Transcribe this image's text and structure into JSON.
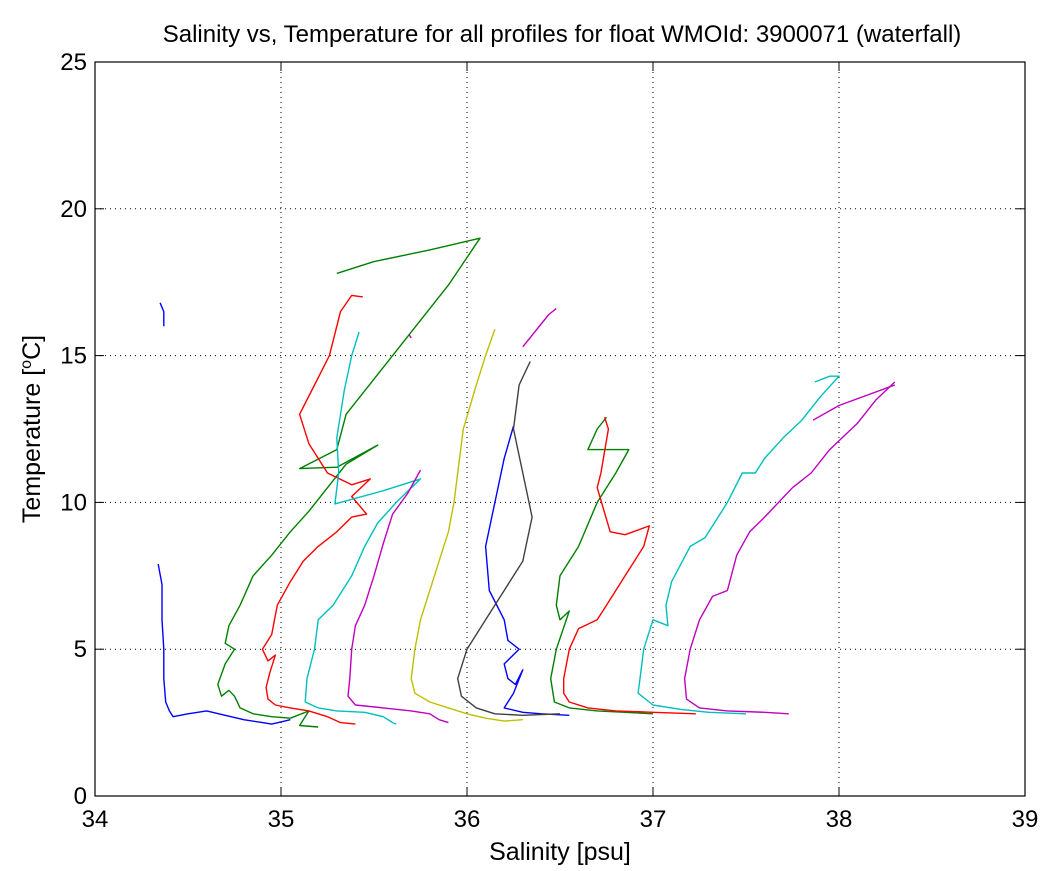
{
  "chart_data": {
    "type": "line",
    "title": "Salinity vs, Temperature for all profiles for float WMOId: 3900071 (waterfall)",
    "xlabel": "Salinity [psu]",
    "ylabel_prefix": "Temperature [",
    "ylabel_sup": "o",
    "ylabel_suffix": "C]",
    "xlim": [
      34,
      39
    ],
    "ylim": [
      0,
      25
    ],
    "xticks": [
      34,
      35,
      36,
      37,
      38,
      39
    ],
    "yticks": [
      0,
      5,
      10,
      15,
      20,
      25
    ],
    "grid": true,
    "series": [
      {
        "color": "#0000ff",
        "points": [
          [
            34.35,
            16.8
          ],
          [
            34.37,
            16.5
          ],
          [
            34.37,
            16.0
          ]
        ]
      },
      {
        "color": "#0000ff",
        "points": [
          [
            34.34,
            7.9
          ],
          [
            34.36,
            7.2
          ],
          [
            34.36,
            6.0
          ],
          [
            34.37,
            5.0
          ],
          [
            34.37,
            4.0
          ],
          [
            34.38,
            3.2
          ],
          [
            34.4,
            2.9
          ],
          [
            34.42,
            2.7
          ],
          [
            34.5,
            2.8
          ],
          [
            34.6,
            2.9
          ],
          [
            34.7,
            2.75
          ],
          [
            34.8,
            2.6
          ],
          [
            34.9,
            2.5
          ],
          [
            34.95,
            2.45
          ],
          [
            35.02,
            2.55
          ],
          [
            35.05,
            2.6
          ]
        ]
      },
      {
        "color": "#008000",
        "points": [
          [
            35.3,
            17.8
          ],
          [
            35.5,
            18.2
          ],
          [
            35.8,
            18.6
          ],
          [
            36.07,
            19.0
          ],
          [
            35.9,
            17.4
          ],
          [
            35.7,
            15.8
          ],
          [
            35.5,
            14.2
          ],
          [
            35.35,
            13.0
          ],
          [
            35.3,
            11.8
          ],
          [
            35.1,
            11.15
          ],
          [
            35.3,
            11.2
          ],
          [
            35.52,
            11.95
          ],
          [
            35.35,
            11.3
          ],
          [
            35.25,
            10.5
          ],
          [
            35.15,
            9.7
          ],
          [
            35.05,
            9.0
          ],
          [
            34.95,
            8.2
          ],
          [
            34.85,
            7.5
          ],
          [
            34.78,
            6.5
          ],
          [
            34.72,
            5.8
          ],
          [
            34.7,
            5.2
          ],
          [
            34.75,
            5.0
          ],
          [
            34.7,
            4.5
          ],
          [
            34.66,
            3.8
          ],
          [
            34.68,
            3.4
          ],
          [
            34.72,
            3.6
          ],
          [
            34.75,
            3.4
          ],
          [
            34.78,
            3.0
          ],
          [
            34.85,
            2.8
          ],
          [
            34.95,
            2.7
          ],
          [
            35.05,
            2.65
          ],
          [
            35.15,
            2.9
          ],
          [
            35.1,
            2.4
          ],
          [
            35.2,
            2.35
          ]
        ]
      },
      {
        "color": "#ff0000",
        "points": [
          [
            35.44,
            17.0
          ],
          [
            35.38,
            17.05
          ],
          [
            35.32,
            16.5
          ],
          [
            35.26,
            15.0
          ],
          [
            35.18,
            14.0
          ],
          [
            35.1,
            13.0
          ],
          [
            35.15,
            12.0
          ],
          [
            35.25,
            11.0
          ],
          [
            35.38,
            10.6
          ],
          [
            35.48,
            10.8
          ],
          [
            35.38,
            10.2
          ],
          [
            35.46,
            9.6
          ],
          [
            35.38,
            9.5
          ],
          [
            35.3,
            9.0
          ],
          [
            35.2,
            8.5
          ],
          [
            35.12,
            8.0
          ],
          [
            35.05,
            7.3
          ],
          [
            34.98,
            6.5
          ],
          [
            34.95,
            5.5
          ],
          [
            34.9,
            5.0
          ],
          [
            34.93,
            4.6
          ],
          [
            34.97,
            4.8
          ],
          [
            34.94,
            4.2
          ],
          [
            34.92,
            3.7
          ],
          [
            34.93,
            3.3
          ],
          [
            34.97,
            3.1
          ],
          [
            35.05,
            3.0
          ],
          [
            35.15,
            2.9
          ],
          [
            35.25,
            2.7
          ],
          [
            35.32,
            2.5
          ],
          [
            35.4,
            2.45
          ]
        ]
      },
      {
        "color": "#00bfbf",
        "points": [
          [
            35.42,
            15.8
          ],
          [
            35.38,
            15.0
          ],
          [
            35.34,
            13.8
          ],
          [
            35.3,
            12.2
          ],
          [
            35.31,
            11.0
          ],
          [
            35.29,
            9.95
          ],
          [
            35.55,
            10.4
          ],
          [
            35.75,
            10.8
          ],
          [
            35.62,
            10.0
          ],
          [
            35.52,
            9.3
          ],
          [
            35.45,
            8.5
          ],
          [
            35.38,
            7.5
          ],
          [
            35.33,
            7.0
          ],
          [
            35.28,
            6.5
          ],
          [
            35.2,
            6.0
          ],
          [
            35.18,
            5.0
          ],
          [
            35.14,
            4.0
          ],
          [
            35.13,
            3.2
          ],
          [
            35.2,
            3.0
          ],
          [
            35.3,
            2.9
          ],
          [
            35.45,
            2.85
          ],
          [
            35.55,
            2.7
          ],
          [
            35.6,
            2.5
          ],
          [
            35.62,
            2.45
          ]
        ]
      },
      {
        "color": "#bf00bf",
        "points": [
          [
            35.69,
            15.7
          ],
          [
            35.7,
            15.6
          ]
        ]
      },
      {
        "color": "#bf00bf",
        "points": [
          [
            35.75,
            11.1
          ],
          [
            35.68,
            10.3
          ],
          [
            35.6,
            9.6
          ],
          [
            35.55,
            8.6
          ],
          [
            35.5,
            7.5
          ],
          [
            35.45,
            6.5
          ],
          [
            35.4,
            5.8
          ],
          [
            35.38,
            5.0
          ],
          [
            35.37,
            4.0
          ],
          [
            35.36,
            3.4
          ],
          [
            35.4,
            3.1
          ],
          [
            35.55,
            3.0
          ],
          [
            35.7,
            2.9
          ],
          [
            35.8,
            2.8
          ],
          [
            35.85,
            2.6
          ],
          [
            35.9,
            2.5
          ]
        ]
      },
      {
        "color": "#bfbf00",
        "points": [
          [
            36.15,
            15.9
          ],
          [
            36.1,
            15.0
          ],
          [
            36.05,
            14.0
          ],
          [
            35.98,
            12.5
          ],
          [
            35.95,
            11.0
          ],
          [
            35.93,
            10.0
          ],
          [
            35.9,
            9.0
          ],
          [
            35.85,
            8.0
          ],
          [
            35.8,
            7.0
          ],
          [
            35.75,
            6.0
          ],
          [
            35.72,
            5.0
          ],
          [
            35.7,
            4.0
          ],
          [
            35.72,
            3.5
          ],
          [
            35.8,
            3.2
          ],
          [
            35.9,
            3.0
          ],
          [
            36.0,
            2.8
          ],
          [
            36.1,
            2.65
          ],
          [
            36.2,
            2.55
          ],
          [
            36.3,
            2.6
          ]
        ]
      },
      {
        "color": "#0000ff",
        "points": [
          [
            36.25,
            12.6
          ],
          [
            36.2,
            11.5
          ],
          [
            36.15,
            10.0
          ],
          [
            36.1,
            8.5
          ],
          [
            36.12,
            7.0
          ],
          [
            36.2,
            6.0
          ],
          [
            36.22,
            5.3
          ],
          [
            36.28,
            5.0
          ],
          [
            36.2,
            4.5
          ],
          [
            36.22,
            4.0
          ],
          [
            36.26,
            3.8
          ],
          [
            36.3,
            4.3
          ],
          [
            36.25,
            3.5
          ],
          [
            36.2,
            3.0
          ],
          [
            36.3,
            2.85
          ],
          [
            36.4,
            2.8
          ],
          [
            36.55,
            2.75
          ]
        ]
      },
      {
        "color": "#404040",
        "points": [
          [
            36.34,
            14.8
          ],
          [
            36.28,
            14.0
          ],
          [
            36.25,
            12.5
          ],
          [
            36.3,
            11.0
          ],
          [
            36.35,
            9.5
          ],
          [
            36.3,
            8.0
          ],
          [
            36.2,
            7.0
          ],
          [
            36.1,
            6.0
          ],
          [
            36.0,
            5.0
          ],
          [
            35.95,
            4.0
          ],
          [
            35.97,
            3.4
          ],
          [
            36.05,
            3.0
          ],
          [
            36.15,
            2.8
          ],
          [
            36.3,
            2.75
          ],
          [
            36.5,
            2.8
          ]
        ]
      },
      {
        "color": "#bf00bf",
        "points": [
          [
            36.48,
            16.6
          ],
          [
            36.44,
            16.4
          ],
          [
            36.3,
            15.3
          ]
        ]
      },
      {
        "color": "#008000",
        "points": [
          [
            36.75,
            12.9
          ],
          [
            36.7,
            12.5
          ],
          [
            36.65,
            11.8
          ],
          [
            36.75,
            11.8
          ],
          [
            36.87,
            11.8
          ],
          [
            36.8,
            11.0
          ],
          [
            36.7,
            10.0
          ],
          [
            36.6,
            8.5
          ],
          [
            36.5,
            7.5
          ],
          [
            36.48,
            6.5
          ],
          [
            36.5,
            6.0
          ],
          [
            36.55,
            6.3
          ],
          [
            36.48,
            5.0
          ],
          [
            36.45,
            4.0
          ],
          [
            36.47,
            3.2
          ],
          [
            36.55,
            3.0
          ],
          [
            36.7,
            2.9
          ],
          [
            36.85,
            2.85
          ],
          [
            37.0,
            2.8
          ]
        ]
      },
      {
        "color": "#ff0000",
        "points": [
          [
            36.74,
            12.9
          ],
          [
            36.76,
            12.5
          ],
          [
            36.72,
            11.0
          ],
          [
            36.7,
            10.5
          ],
          [
            36.77,
            9.0
          ],
          [
            36.85,
            8.9
          ],
          [
            36.98,
            9.2
          ],
          [
            36.95,
            8.5
          ],
          [
            36.9,
            8.0
          ],
          [
            36.85,
            7.5
          ],
          [
            36.8,
            7.0
          ],
          [
            36.75,
            6.5
          ],
          [
            36.7,
            6.0
          ],
          [
            36.6,
            5.7
          ],
          [
            36.55,
            5.0
          ],
          [
            36.52,
            4.0
          ],
          [
            36.52,
            3.5
          ],
          [
            36.55,
            3.2
          ],
          [
            36.65,
            3.0
          ],
          [
            36.8,
            2.9
          ],
          [
            37.0,
            2.85
          ],
          [
            37.23,
            2.8
          ]
        ]
      },
      {
        "color": "#00bfbf",
        "points": [
          [
            37.87,
            14.1
          ],
          [
            37.95,
            14.3
          ],
          [
            38.0,
            14.3
          ],
          [
            37.9,
            13.6
          ],
          [
            37.8,
            12.8
          ],
          [
            37.7,
            12.2
          ],
          [
            37.6,
            11.5
          ],
          [
            37.55,
            11.0
          ],
          [
            37.48,
            11.0
          ],
          [
            37.4,
            10.0
          ],
          [
            37.35,
            9.5
          ],
          [
            37.3,
            9.0
          ],
          [
            37.28,
            8.8
          ],
          [
            37.2,
            8.5
          ],
          [
            37.1,
            7.3
          ],
          [
            37.07,
            6.5
          ],
          [
            37.08,
            5.8
          ],
          [
            37.0,
            6.0
          ],
          [
            36.95,
            5.0
          ],
          [
            36.93,
            4.0
          ],
          [
            36.92,
            3.5
          ],
          [
            37.0,
            3.1
          ],
          [
            37.15,
            2.95
          ],
          [
            37.3,
            2.85
          ],
          [
            37.5,
            2.8
          ]
        ]
      },
      {
        "color": "#bf00bf",
        "points": [
          [
            38.3,
            14.1
          ],
          [
            38.2,
            13.5
          ],
          [
            38.1,
            12.7
          ],
          [
            37.95,
            11.8
          ],
          [
            37.85,
            11.0
          ],
          [
            37.75,
            10.5
          ],
          [
            37.6,
            9.5
          ],
          [
            37.52,
            9.0
          ],
          [
            37.45,
            8.2
          ],
          [
            37.4,
            7.0
          ],
          [
            37.32,
            6.8
          ],
          [
            37.25,
            6.0
          ],
          [
            37.2,
            5.0
          ],
          [
            37.17,
            4.0
          ],
          [
            37.18,
            3.3
          ],
          [
            37.25,
            3.0
          ],
          [
            37.4,
            2.9
          ],
          [
            37.6,
            2.85
          ],
          [
            37.73,
            2.8
          ]
        ]
      },
      {
        "color": "#bf00bf",
        "points": [
          [
            37.86,
            12.8
          ],
          [
            38.0,
            13.3
          ],
          [
            38.3,
            14.0
          ]
        ]
      }
    ]
  }
}
